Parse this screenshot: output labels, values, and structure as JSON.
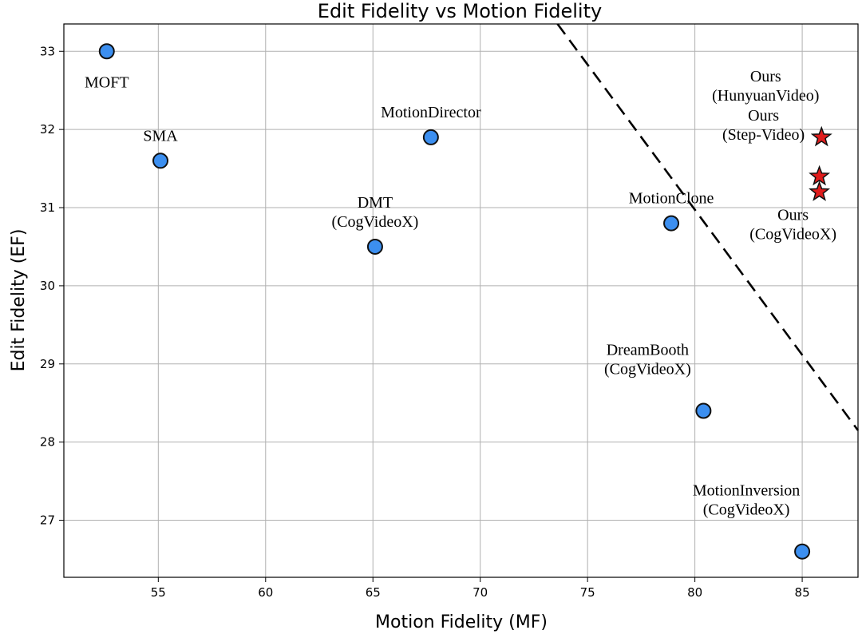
{
  "chart_data": {
    "type": "scatter",
    "title": "Edit Fidelity vs Motion Fidelity",
    "xlabel": "Motion Fidelity (MF)",
    "ylabel": "Edit Fidelity (EF)",
    "xlim": [
      50.6,
      87.6
    ],
    "ylim": [
      26.27,
      33.35
    ],
    "xticks": [
      55,
      60,
      65,
      70,
      75,
      80,
      85
    ],
    "yticks": [
      27,
      28,
      29,
      30,
      31,
      32,
      33
    ],
    "grid": true,
    "colors": {
      "baseline": "#3c8ff0",
      "ours": "#e01c1c"
    },
    "points": [
      {
        "label": [
          "MOFT"
        ],
        "x": 52.6,
        "y": 33.0,
        "marker": "circle",
        "group": "baseline",
        "label_pos": "below"
      },
      {
        "label": [
          "SMA"
        ],
        "x": 55.1,
        "y": 31.6,
        "marker": "circle",
        "group": "baseline",
        "label_pos": "above"
      },
      {
        "label": [
          "MotionDirector"
        ],
        "x": 67.7,
        "y": 31.9,
        "marker": "circle",
        "group": "baseline",
        "label_pos": "above"
      },
      {
        "label": [
          "DMT",
          "(CogVideoX)"
        ],
        "x": 65.1,
        "y": 30.5,
        "marker": "circle",
        "group": "baseline",
        "label_pos": "above"
      },
      {
        "label": [
          "MotionClone"
        ],
        "x": 78.9,
        "y": 30.8,
        "marker": "circle",
        "group": "baseline",
        "label_pos": "above"
      },
      {
        "label": [
          "DreamBooth",
          "(CogVideoX)"
        ],
        "x": 80.4,
        "y": 28.4,
        "marker": "circle",
        "group": "baseline",
        "label_pos": "above-left"
      },
      {
        "label": [
          "MotionInversion",
          "(CogVideoX)"
        ],
        "x": 85.0,
        "y": 26.6,
        "marker": "circle",
        "group": "baseline",
        "label_pos": "above-left"
      },
      {
        "label": [
          "Ours",
          "(HunyuanVideo)"
        ],
        "x": 85.9,
        "y": 31.9,
        "marker": "star",
        "group": "ours",
        "label_pos": "above-left"
      },
      {
        "label": [
          "Ours",
          "(Step-Video)"
        ],
        "x": 85.8,
        "y": 31.4,
        "marker": "star",
        "group": "ours",
        "label_pos": "above-left"
      },
      {
        "label": [
          "Ours",
          "(CogVideoX)"
        ],
        "x": 85.8,
        "y": 31.2,
        "marker": "star",
        "group": "ours",
        "label_pos": "below"
      }
    ],
    "trendline": {
      "style": "dashed",
      "from": [
        73.6,
        33.35
      ],
      "to": [
        87.6,
        28.15
      ]
    }
  }
}
